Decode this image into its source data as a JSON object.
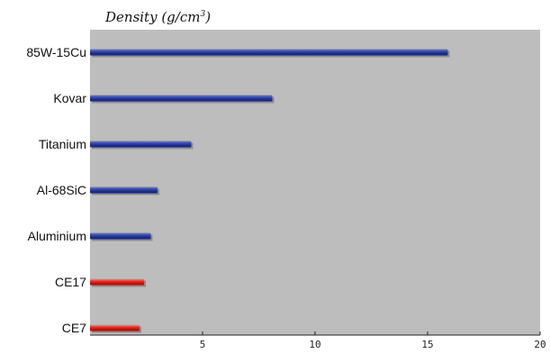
{
  "chart_data": {
    "type": "bar",
    "orientation": "horizontal",
    "title_main": "Density  (g/cm",
    "title_sup": "3",
    "title_end": ")",
    "categories": [
      "85W-15Cu",
      "Kovar",
      "Titanium",
      "Al-68SiC",
      "Aluminium",
      "CE17",
      "CE7"
    ],
    "values": [
      15.9,
      8.1,
      4.5,
      3.0,
      2.7,
      2.4,
      2.2
    ],
    "bar_colors": [
      "#2b3fa3",
      "#2b3fa3",
      "#2b3fa3",
      "#2b3fa3",
      "#2b3fa3",
      "#e0261f",
      "#e0261f"
    ],
    "xlim": [
      0,
      20
    ],
    "xticks": [
      5,
      10,
      15,
      20
    ],
    "grid": false,
    "plot_background": "#bdbdbd"
  }
}
